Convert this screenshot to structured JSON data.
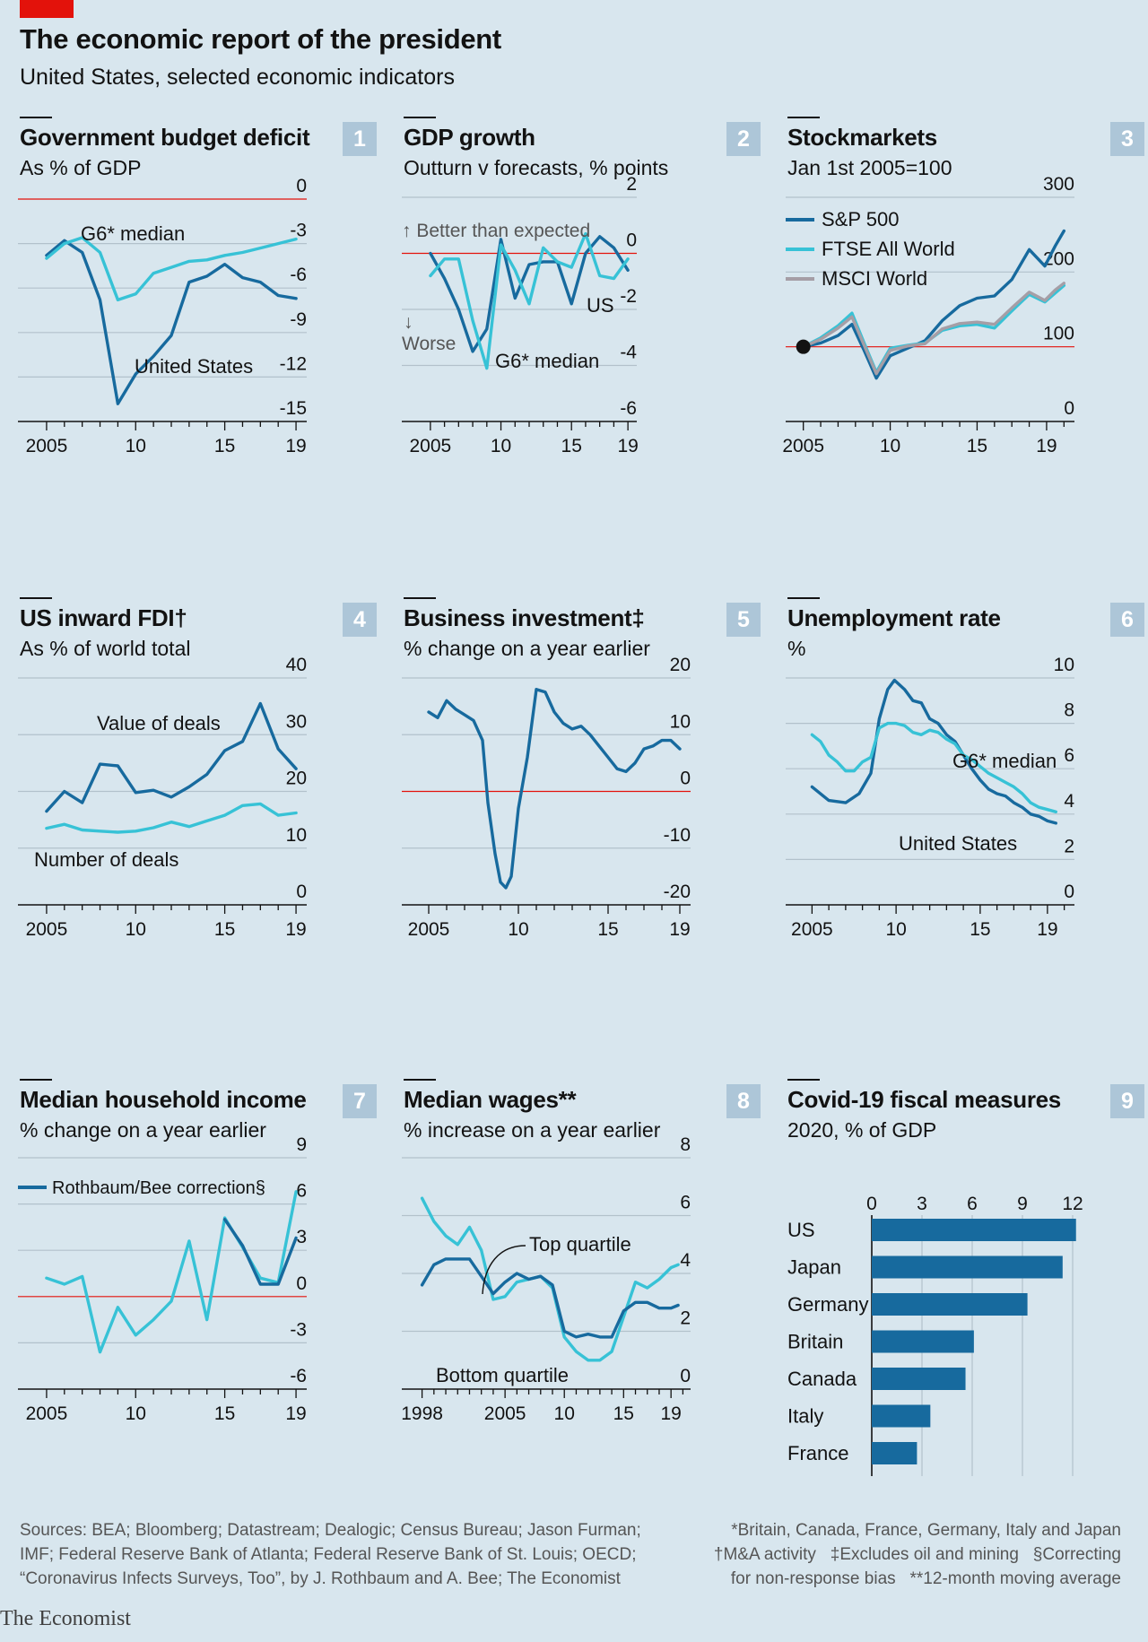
{
  "header": {
    "title": "The economic report of the president",
    "subtitle": "United States, selected economic indicators"
  },
  "footer": {
    "sources": [
      "Sources: BEA; Bloomberg; Datastream; Dealogic; Census Bureau; Jason Furman;",
      "IMF; Federal Reserve Bank of Atlanta; Federal Reserve Bank of St. Louis; OECD;",
      "“Coronavirus Infects Surveys, Too”, by J. Rothbaum and A. Bee; The Economist"
    ],
    "notes": [
      "*Britain, Canada, France, Germany, Italy and Japan",
      "†M&A activity   ‡Excludes oil and mining   §Correcting",
      "for non-response bias   **12-month moving average"
    ],
    "brand": "The Economist"
  },
  "colors": {
    "dark": "#176a9e",
    "light": "#37c2d6",
    "grey": "#a59ea6",
    "red": "#e3120b",
    "grid": "#b2c1cb",
    "background": "#d8e6ee"
  },
  "chart_data": [
    {
      "number": "1",
      "type": "line",
      "title": "Government budget deficit",
      "subtitle": "As % of GDP",
      "ylim": [
        -15,
        0
      ],
      "yticks": [
        0,
        -3,
        -6,
        -9,
        -12,
        -15
      ],
      "xlim": [
        2004.5,
        2019.5
      ],
      "xtick_labels": [
        "2005",
        "10",
        "15",
        "19"
      ],
      "xtick_years": [
        2005,
        2010,
        2015,
        2019
      ],
      "reference_line": 0,
      "series": [
        {
          "name": "United States",
          "color": "dark",
          "x": [
            2005,
            2006,
            2007,
            2008,
            2009,
            2010,
            2011,
            2012,
            2013,
            2014,
            2015,
            2016,
            2017,
            2018,
            2019
          ],
          "y": [
            -3.8,
            -2.8,
            -3.6,
            -6.8,
            -13.8,
            -11.8,
            -10.6,
            -9.2,
            -5.6,
            -5.2,
            -4.4,
            -5.3,
            -5.6,
            -6.5,
            -6.7
          ]
        },
        {
          "name": "G6* median",
          "color": "light",
          "x": [
            2005,
            2006,
            2007,
            2008,
            2009,
            2010,
            2011,
            2012,
            2013,
            2014,
            2015,
            2016,
            2017,
            2018,
            2019
          ],
          "y": [
            -4.0,
            -3.0,
            -2.6,
            -3.6,
            -6.8,
            -6.4,
            -5.0,
            -4.6,
            -4.2,
            -4.1,
            -3.8,
            -3.6,
            -3.3,
            -3.0,
            -2.7
          ]
        }
      ],
      "annotations": [
        "G6* median",
        "United States"
      ]
    },
    {
      "number": "2",
      "type": "line",
      "title": "GDP growth",
      "subtitle": "Outturn v forecasts, % points",
      "ylim": [
        -6,
        2
      ],
      "yticks": [
        2,
        0,
        -2,
        -4,
        -6
      ],
      "xlim": [
        2004.5,
        2019.5
      ],
      "xtick_labels": [
        "2005",
        "10",
        "15",
        "19"
      ],
      "xtick_years": [
        2005,
        2010,
        2015,
        2019
      ],
      "reference_line": 0,
      "series": [
        {
          "name": "US",
          "color": "dark",
          "x": [
            2005,
            2006,
            2007,
            2008,
            2009,
            2010,
            2011,
            2012,
            2013,
            2014,
            2015,
            2016,
            2017,
            2018,
            2019
          ],
          "y": [
            0,
            -0.9,
            -2.0,
            -3.5,
            -2.7,
            0.5,
            -1.6,
            -0.4,
            -0.3,
            -0.3,
            -1.8,
            0,
            0.6,
            0.2,
            -0.6
          ]
        },
        {
          "name": "G6* median",
          "color": "light",
          "x": [
            2005,
            2006,
            2007,
            2008,
            2009,
            2010,
            2011,
            2012,
            2013,
            2014,
            2015,
            2016,
            2017,
            2018,
            2019
          ],
          "y": [
            -0.8,
            -0.2,
            -0.2,
            -2.4,
            -4.1,
            0.3,
            -0.6,
            -1.8,
            0.2,
            -0.3,
            -0.5,
            0.7,
            -0.8,
            -0.9,
            -0.2
          ]
        }
      ],
      "annotations": [
        "↑ Better than expected",
        "↓",
        "Worse",
        "US",
        "G6* median"
      ]
    },
    {
      "number": "3",
      "type": "line",
      "title": "Stockmarkets",
      "subtitle": "Jan 1st 2005=100",
      "ylim": [
        0,
        300
      ],
      "yticks": [
        300,
        200,
        100,
        0
      ],
      "xlim": [
        2004.5,
        2020.5
      ],
      "xtick_labels": [
        "2005",
        "10",
        "15",
        "19"
      ],
      "xtick_years": [
        2005,
        2010,
        2015,
        2019
      ],
      "reference_line": 100,
      "series": [
        {
          "name": "S&P 500",
          "color": "dark",
          "x": [
            2005,
            2006,
            2007,
            2007.8,
            2008.5,
            2009.2,
            2010,
            2011,
            2012,
            2013,
            2014,
            2015,
            2016,
            2017,
            2018,
            2018.9,
            2019.5,
            2020
          ],
          "y": [
            100,
            105,
            115,
            130,
            95,
            58,
            88,
            98,
            108,
            135,
            155,
            165,
            168,
            190,
            230,
            208,
            235,
            255
          ]
        },
        {
          "name": "FTSE All World",
          "color": "light",
          "x": [
            2005,
            2006,
            2007,
            2007.8,
            2008.5,
            2009.2,
            2010,
            2011,
            2012,
            2013,
            2014,
            2015,
            2016,
            2017,
            2018,
            2018.9,
            2019.5,
            2020
          ],
          "y": [
            100,
            112,
            128,
            145,
            105,
            66,
            98,
            102,
            105,
            122,
            128,
            130,
            125,
            148,
            170,
            160,
            172,
            182
          ]
        },
        {
          "name": "MSCI World",
          "color": "grey",
          "x": [
            2005,
            2006,
            2007,
            2007.8,
            2008.5,
            2009.2,
            2010,
            2011,
            2012,
            2013,
            2014,
            2015,
            2016,
            2017,
            2018,
            2018.9,
            2019.5,
            2020
          ],
          "y": [
            100,
            110,
            125,
            140,
            102,
            64,
            95,
            101,
            104,
            124,
            131,
            133,
            130,
            152,
            173,
            162,
            176,
            185
          ]
        }
      ],
      "legend": [
        "S&P 500",
        "FTSE All World",
        "MSCI World"
      ],
      "legend_position": "top-left"
    },
    {
      "number": "4",
      "type": "line",
      "title": "US inward FDI†",
      "subtitle": "As % of world total",
      "ylim": [
        0,
        40
      ],
      "yticks": [
        40,
        30,
        20,
        10,
        0
      ],
      "xlim": [
        2004.5,
        2019.5
      ],
      "xtick_labels": [
        "2005",
        "10",
        "15",
        "19"
      ],
      "xtick_years": [
        2005,
        2010,
        2015,
        2019
      ],
      "series": [
        {
          "name": "Value of deals",
          "color": "dark",
          "x": [
            2005,
            2006,
            2007,
            2008,
            2009,
            2010,
            2011,
            2012,
            2013,
            2014,
            2015,
            2016,
            2017,
            2018,
            2019
          ],
          "y": [
            16.5,
            20.0,
            18.0,
            24.8,
            24.5,
            19.8,
            20.2,
            19.0,
            20.8,
            23.0,
            27.2,
            28.8,
            35.5,
            27.5,
            24.0
          ]
        },
        {
          "name": "Number of deals",
          "color": "light",
          "x": [
            2005,
            2006,
            2007,
            2008,
            2009,
            2010,
            2011,
            2012,
            2013,
            2014,
            2015,
            2016,
            2017,
            2018,
            2019
          ],
          "y": [
            13.5,
            14.2,
            13.2,
            13.0,
            12.8,
            13.0,
            13.6,
            14.6,
            13.8,
            14.8,
            15.8,
            17.5,
            17.8,
            15.8,
            16.2
          ]
        }
      ],
      "annotations": [
        "Value of deals",
        "Number of deals"
      ]
    },
    {
      "number": "5",
      "type": "line",
      "title": "Business investment‡",
      "subtitle": "% change on a year earlier",
      "ylim": [
        -20,
        20
      ],
      "yticks": [
        20,
        10,
        0,
        -10,
        -20
      ],
      "xlim": [
        2004.5,
        2019.5
      ],
      "xtick_labels": [
        "2005",
        "10",
        "15",
        "19"
      ],
      "xtick_years": [
        2005,
        2010,
        2015,
        2019
      ],
      "reference_line": 0,
      "series": [
        {
          "name": "US",
          "color": "dark",
          "x": [
            2005,
            2005.5,
            2006,
            2006.5,
            2007,
            2007.5,
            2008,
            2008.3,
            2008.7,
            2009,
            2009.3,
            2009.6,
            2010,
            2010.5,
            2011,
            2011.5,
            2012,
            2012.5,
            2013,
            2013.5,
            2014,
            2014.5,
            2015,
            2015.5,
            2016,
            2016.5,
            2017,
            2017.5,
            2018,
            2018.5,
            2019
          ],
          "y": [
            14,
            13,
            16,
            14.5,
            13.5,
            12.5,
            9,
            -2,
            -11,
            -16,
            -17,
            -15,
            -3,
            6,
            18,
            17.5,
            14,
            12,
            11,
            11.5,
            10,
            8,
            6,
            4,
            3.5,
            5,
            7.5,
            8,
            9,
            9,
            7.5
          ]
        }
      ]
    },
    {
      "number": "6",
      "type": "line",
      "title": "Unemployment rate",
      "subtitle": "%",
      "ylim": [
        0,
        10
      ],
      "yticks": [
        10,
        8,
        6,
        4,
        2,
        0
      ],
      "xlim": [
        2004.5,
        2020.5
      ],
      "xtick_labels": [
        "2005",
        "10",
        "15",
        "19"
      ],
      "xtick_years": [
        2005,
        2010,
        2015,
        2019
      ],
      "series": [
        {
          "name": "United States",
          "color": "dark",
          "x": [
            2005,
            2006,
            2007,
            2007.8,
            2008.5,
            2009,
            2009.5,
            2009.9,
            2010.5,
            2011,
            2011.5,
            2012,
            2012.5,
            2013,
            2013.5,
            2014,
            2014.5,
            2015,
            2015.5,
            2016,
            2016.5,
            2017,
            2017.5,
            2018,
            2018.5,
            2019,
            2019.5
          ],
          "y": [
            5.2,
            4.6,
            4.5,
            4.9,
            5.8,
            8.2,
            9.5,
            9.9,
            9.5,
            9.0,
            8.9,
            8.2,
            8.0,
            7.5,
            7.2,
            6.6,
            6.0,
            5.5,
            5.1,
            4.9,
            4.8,
            4.5,
            4.3,
            4.0,
            3.9,
            3.7,
            3.6
          ]
        },
        {
          "name": "G6* median",
          "color": "light",
          "x": [
            2005,
            2005.5,
            2006,
            2006.5,
            2007,
            2007.5,
            2008,
            2008.5,
            2009,
            2009.5,
            2010,
            2010.5,
            2011,
            2011.5,
            2012,
            2012.5,
            2013,
            2013.5,
            2014,
            2014.5,
            2015,
            2015.5,
            2016,
            2016.5,
            2017,
            2017.5,
            2018,
            2018.5,
            2019,
            2019.5
          ],
          "y": [
            7.5,
            7.2,
            6.6,
            6.3,
            5.9,
            5.9,
            6.3,
            6.5,
            7.8,
            8.0,
            8.0,
            7.9,
            7.6,
            7.5,
            7.7,
            7.6,
            7.3,
            7.1,
            6.6,
            6.4,
            6.1,
            5.8,
            5.6,
            5.4,
            5.2,
            4.9,
            4.5,
            4.3,
            4.2,
            4.1
          ]
        }
      ],
      "annotations": [
        "G6* median",
        "United States"
      ]
    },
    {
      "number": "7",
      "type": "line",
      "title": "Median household income",
      "subtitle": "% change on a year earlier",
      "ylim": [
        -6,
        9
      ],
      "yticks": [
        9,
        6,
        3,
        0,
        -3,
        -6
      ],
      "xlim": [
        2004.5,
        2019.5
      ],
      "xtick_labels": [
        "2005",
        "10",
        "15",
        "19"
      ],
      "xtick_years": [
        2005,
        2010,
        2015,
        2019
      ],
      "reference_line": 0,
      "series": [
        {
          "name": "Median household income",
          "color": "light",
          "x": [
            2005,
            2006,
            2007,
            2008,
            2009,
            2010,
            2011,
            2012,
            2013,
            2014,
            2015,
            2016,
            2017,
            2018,
            2019
          ],
          "y": [
            1.2,
            0.8,
            1.3,
            -3.6,
            -0.7,
            -2.5,
            -1.5,
            -0.3,
            3.6,
            -1.5,
            5.1,
            3.2,
            1.2,
            0.9,
            6.8
          ]
        },
        {
          "name": "Rothbaum/Bee correction§",
          "color": "dark",
          "x": [
            2015,
            2016,
            2017,
            2018,
            2019
          ],
          "y": [
            5.0,
            3.3,
            0.8,
            0.8,
            3.8
          ]
        }
      ],
      "legend": [
        "Rothbaum/Bee correction§"
      ],
      "legend_position": "top-left"
    },
    {
      "number": "8",
      "type": "line",
      "title": "Median wages**",
      "subtitle": "% increase on a year earlier",
      "ylim": [
        0,
        8
      ],
      "yticks": [
        8,
        6,
        4,
        2,
        0
      ],
      "xlim": [
        1997.5,
        2020.5
      ],
      "xtick_labels": [
        "1998",
        "2005",
        "10",
        "15",
        "19"
      ],
      "xtick_years": [
        1998,
        2005,
        2010,
        2015,
        2019
      ],
      "series": [
        {
          "name": "Top quartile",
          "color": "light",
          "x": [
            1998,
            1999,
            2000,
            2001,
            2002,
            2003,
            2004,
            2005,
            2006,
            2007,
            2008,
            2009,
            2010,
            2011,
            2012,
            2013,
            2014,
            2015,
            2016,
            2017,
            2018,
            2019,
            2019.6
          ],
          "y": [
            6.6,
            5.8,
            5.3,
            5.0,
            5.6,
            4.8,
            3.1,
            3.2,
            3.7,
            3.8,
            3.9,
            3.5,
            1.8,
            1.3,
            1.0,
            1.0,
            1.3,
            2.5,
            3.7,
            3.5,
            3.8,
            4.2,
            4.3
          ]
        },
        {
          "name": "Bottom quartile",
          "color": "dark",
          "x": [
            1998,
            1999,
            2000,
            2001,
            2002,
            2003,
            2004,
            2005,
            2006,
            2007,
            2008,
            2009,
            2010,
            2011,
            2012,
            2013,
            2014,
            2015,
            2016,
            2017,
            2018,
            2019,
            2019.6
          ],
          "y": [
            3.6,
            4.3,
            4.5,
            4.5,
            4.5,
            3.9,
            3.3,
            3.7,
            4.0,
            3.8,
            3.9,
            3.6,
            2.0,
            1.8,
            1.9,
            1.8,
            1.8,
            2.7,
            3.0,
            3.0,
            2.8,
            2.8,
            2.9
          ]
        }
      ],
      "annotations": [
        "Top quartile",
        "Bottom quartile"
      ]
    },
    {
      "number": "9",
      "type": "bar",
      "title": "Covid-19 fiscal measures",
      "subtitle": "2020, % of GDP",
      "orientation": "horizontal",
      "xlim": [
        0,
        12
      ],
      "xticks": [
        0,
        3,
        6,
        9,
        12
      ],
      "categories": [
        "US",
        "Japan",
        "Germany",
        "Britain",
        "Canada",
        "Italy",
        "France"
      ],
      "values": [
        12.2,
        11.4,
        9.3,
        6.1,
        5.6,
        3.5,
        2.7
      ]
    }
  ]
}
